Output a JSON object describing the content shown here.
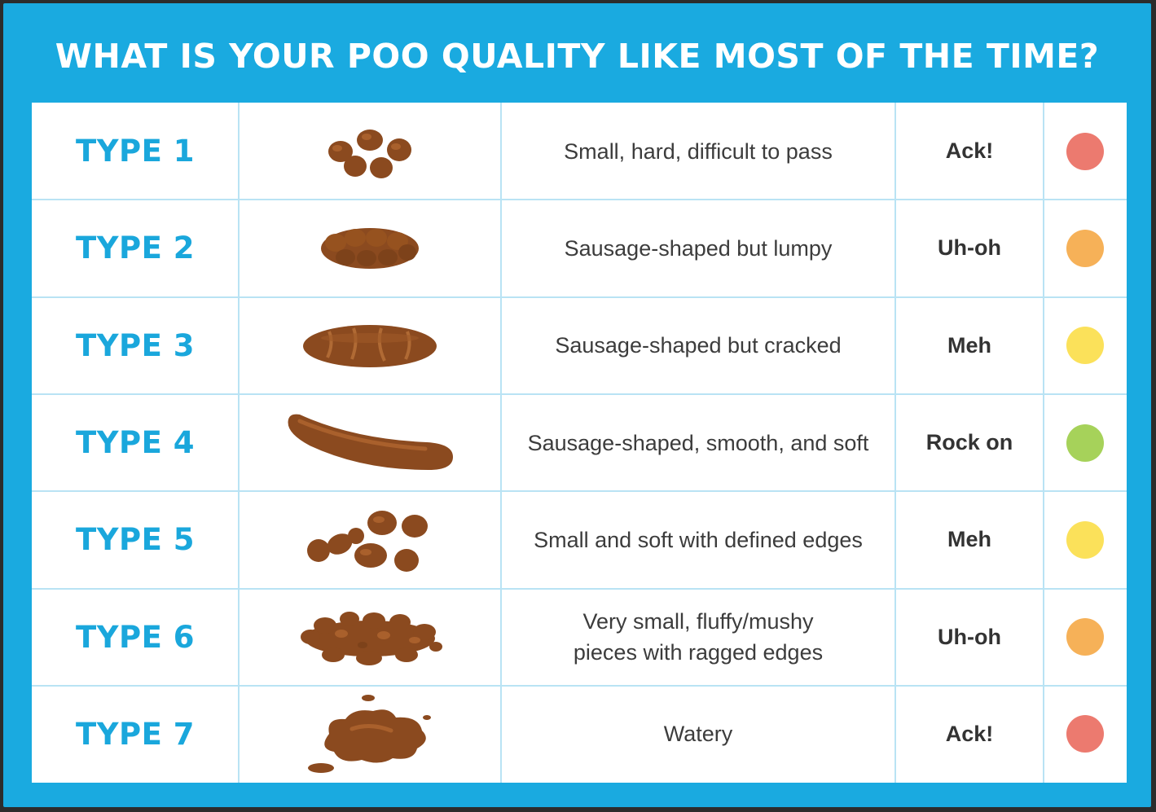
{
  "title": "WHAT IS YOUR POO QUALITY LIKE MOST OF THE TIME?",
  "colors": {
    "background": "#1aaae0",
    "type_text": "#1aa7dc",
    "poo": "#8b4a1f",
    "red": "#ec7a6f",
    "orange": "#f6b158",
    "yellow": "#fbe15a",
    "green": "#a6d25a"
  },
  "rows": [
    {
      "type": "TYPE 1",
      "image_icon": "separate-hard-lumps-icon",
      "description": "Small, hard, difficult to pass",
      "verdict": "Ack!",
      "indicator": "red"
    },
    {
      "type": "TYPE 2",
      "image_icon": "lumpy-sausage-icon",
      "description": "Sausage-shaped but lumpy",
      "verdict": "Uh-oh",
      "indicator": "orange"
    },
    {
      "type": "TYPE 3",
      "image_icon": "cracked-sausage-icon",
      "description": "Sausage-shaped but cracked",
      "verdict": "Meh",
      "indicator": "yellow"
    },
    {
      "type": "TYPE 4",
      "image_icon": "smooth-sausage-icon",
      "description": "Sausage-shaped, smooth, and soft",
      "verdict": "Rock on",
      "indicator": "green"
    },
    {
      "type": "TYPE 5",
      "image_icon": "soft-blobs-icon",
      "description": "Small and soft with defined edges",
      "verdict": "Meh",
      "indicator": "yellow"
    },
    {
      "type": "TYPE 6",
      "image_icon": "mushy-pieces-icon",
      "description_line1": "Very small, fluffy/mushy",
      "description_line2": "pieces with ragged edges",
      "verdict": "Uh-oh",
      "indicator": "orange"
    },
    {
      "type": "TYPE 7",
      "image_icon": "watery-puddle-icon",
      "description": "Watery",
      "verdict": "Ack!",
      "indicator": "red"
    }
  ]
}
